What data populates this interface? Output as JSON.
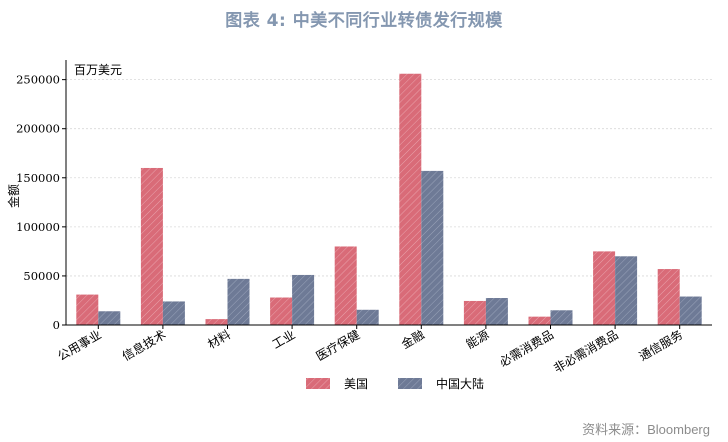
{
  "title": "图表 4:  中美不同行业转债发行规模",
  "source": "资料来源：Bloomberg",
  "colors": {
    "us": "#d96b78",
    "cn": "#6e7a96",
    "title": "#8497b0"
  },
  "chart_data": {
    "type": "bar",
    "unit_label": "百万美元",
    "ylabel": "金额",
    "xlabel": "",
    "ylim": [
      0,
      270000
    ],
    "yticks": [
      0,
      50000,
      100000,
      150000,
      200000,
      250000
    ],
    "grid": true,
    "legend_position": "bottom-center",
    "categories": [
      "公用事业",
      "信息技术",
      "材料",
      "工业",
      "医疗保健",
      "金融",
      "能源",
      "必需消费品",
      "非必需消费品",
      "通信服务"
    ],
    "series": [
      {
        "name": "美国",
        "color": "#d96b78",
        "values": [
          31000,
          160000,
          6000,
          28000,
          80000,
          256000,
          24500,
          8500,
          75000,
          57000
        ]
      },
      {
        "name": "中国大陆",
        "color": "#6e7a96",
        "values": [
          14000,
          24000,
          47000,
          51000,
          15500,
          157000,
          27500,
          15000,
          70000,
          29000
        ]
      }
    ]
  }
}
